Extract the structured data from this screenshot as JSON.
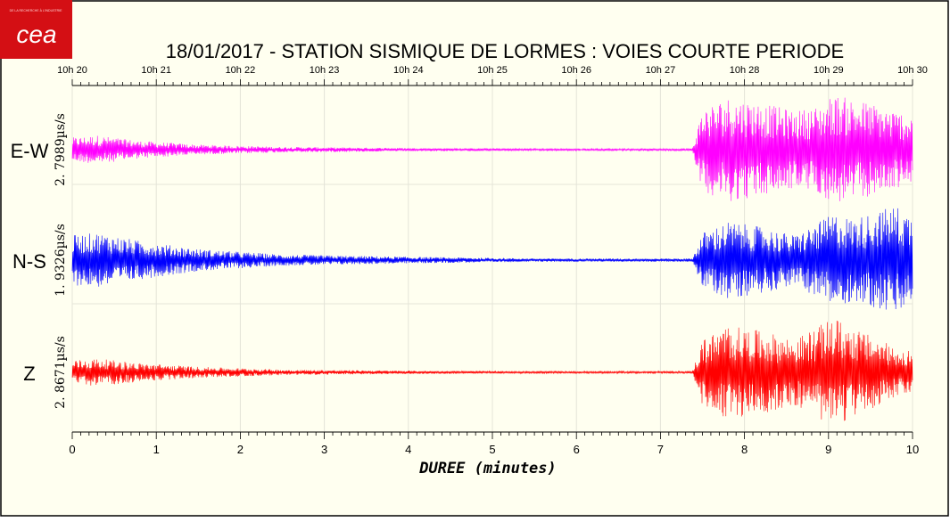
{
  "logo": {
    "text": "cea",
    "tagline": "DE LA RECHERCHE À L'INDUSTRIE"
  },
  "chart_data": {
    "type": "line",
    "title": "18/01/2017  -  STATION SISMIQUE DE LORMES : VOIES COURTE PERIODE",
    "xlabel": "DUREE (minutes)",
    "xlim": [
      0,
      10
    ],
    "x_ticks": [
      "0",
      "1",
      "2",
      "3",
      "4",
      "5",
      "6",
      "7",
      "8",
      "9",
      "10"
    ],
    "time_ticks": [
      "10h 20",
      "10h 21",
      "10h 22",
      "10h 23",
      "10h 24",
      "10h 25",
      "10h 26",
      "10h 27",
      "10h 28",
      "10h 29",
      "10h 30"
    ],
    "grid": true,
    "series": [
      {
        "name": "E-W",
        "scale_label": "2. 7989µs/s",
        "color": "#ff00ff",
        "envelope": {
          "x": [
            0,
            0.3,
            0.8,
            1.5,
            2.5,
            4,
            5.5,
            7.0,
            7.38,
            7.5,
            7.8,
            8.2,
            8.6,
            8.9,
            9.05,
            9.2,
            9.5,
            9.8,
            10
          ],
          "y": [
            0.22,
            0.26,
            0.16,
            0.09,
            0.05,
            0.03,
            0.02,
            0.02,
            0.02,
            0.75,
            0.95,
            0.85,
            0.7,
            0.8,
            1.0,
            0.95,
            0.85,
            0.7,
            0.65
          ]
        }
      },
      {
        "name": "N-S",
        "scale_label": "1. 9326µs/s",
        "color": "#0000ff",
        "envelope": {
          "x": [
            0,
            0.3,
            0.8,
            1.5,
            2.5,
            4,
            5.5,
            7.0,
            7.38,
            7.5,
            7.8,
            8.2,
            8.6,
            8.9,
            9.05,
            9.3,
            9.6,
            9.8,
            10
          ],
          "y": [
            0.45,
            0.5,
            0.35,
            0.2,
            0.1,
            0.06,
            0.03,
            0.03,
            0.03,
            0.5,
            0.7,
            0.6,
            0.45,
            0.7,
            0.85,
            0.75,
            0.9,
            1.0,
            0.8
          ]
        }
      },
      {
        "name": "Z",
        "scale_label": "2. 8671µs/s",
        "color": "#ff0000",
        "envelope": {
          "x": [
            0,
            0.3,
            0.8,
            1.5,
            2.5,
            4,
            5.5,
            7.0,
            7.38,
            7.5,
            7.8,
            8.2,
            8.6,
            8.9,
            9.05,
            9.3,
            9.6,
            9.8,
            10
          ],
          "y": [
            0.22,
            0.25,
            0.17,
            0.1,
            0.05,
            0.03,
            0.02,
            0.02,
            0.02,
            0.6,
            0.85,
            0.75,
            0.6,
            0.85,
            1.0,
            0.8,
            0.6,
            0.45,
            0.4
          ]
        }
      }
    ]
  }
}
